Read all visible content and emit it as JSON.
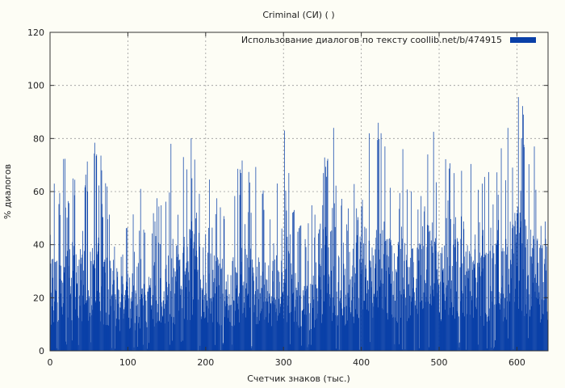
{
  "chart_data": {
    "type": "bar",
    "title": "Criminal (СИ) ( )",
    "xlabel": "Счетчик знаков (тыс.)",
    "ylabel": "% диалогов",
    "xlim": [
      0,
      640
    ],
    "ylim": [
      0,
      120
    ],
    "xticks": [
      0,
      100,
      200,
      300,
      400,
      500,
      600
    ],
    "yticks": [
      0,
      20,
      40,
      60,
      80,
      100,
      120
    ],
    "grid": true,
    "legend_position": "top-right",
    "bar_color": "#0a40a8",
    "series": [
      {
        "name": "Использование диалогов по тексту  coollib.net/b/474915",
        "x": [
          0,
          20,
          40,
          60,
          80,
          100,
          120,
          140,
          160,
          180,
          200,
          220,
          240,
          260,
          280,
          300,
          320,
          340,
          360,
          380,
          400,
          420,
          440,
          460,
          480,
          500,
          520,
          540,
          560,
          580,
          600,
          620,
          640
        ],
        "values": [
          24,
          30,
          28,
          31,
          24,
          18,
          26,
          22,
          27,
          32,
          26,
          24,
          27,
          29,
          22,
          30,
          18,
          23,
          33,
          21,
          32,
          34,
          28,
          24,
          35,
          30,
          31,
          28,
          26,
          30,
          38,
          31,
          26
        ]
      }
    ],
    "peaks": [
      {
        "x": 5,
        "y": 63
      },
      {
        "x": 48,
        "y": 60
      },
      {
        "x": 66,
        "y": 68
      },
      {
        "x": 116,
        "y": 61
      },
      {
        "x": 155,
        "y": 78
      },
      {
        "x": 171,
        "y": 73
      },
      {
        "x": 182,
        "y": 65
      },
      {
        "x": 245,
        "y": 67
      },
      {
        "x": 301,
        "y": 83
      },
      {
        "x": 364,
        "y": 84
      },
      {
        "x": 453,
        "y": 76
      },
      {
        "x": 485,
        "y": 74
      },
      {
        "x": 555,
        "y": 63
      },
      {
        "x": 588,
        "y": 84
      },
      {
        "x": 608,
        "y": 89
      },
      {
        "x": 622,
        "y": 77
      }
    ]
  }
}
